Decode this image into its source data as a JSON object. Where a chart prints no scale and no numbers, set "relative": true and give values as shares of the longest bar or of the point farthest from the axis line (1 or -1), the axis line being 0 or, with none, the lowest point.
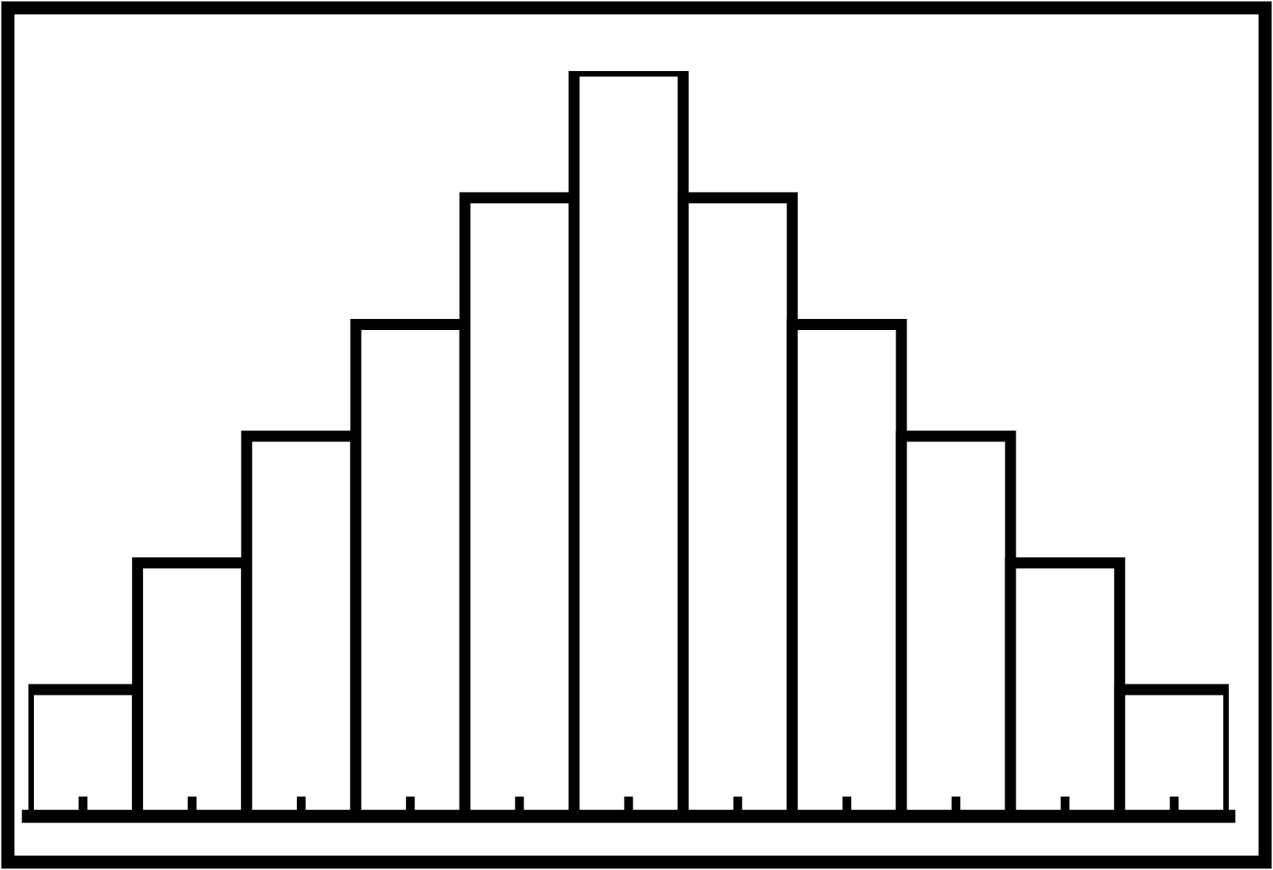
{
  "chart_data": {
    "type": "bar",
    "relative": true,
    "categories": [
      null,
      null,
      null,
      null,
      null,
      null,
      null,
      null,
      null,
      null,
      null
    ],
    "values": [
      0.17,
      0.34,
      0.51,
      0.66,
      0.83,
      1,
      0.83,
      0.66,
      0.51,
      0.34,
      0.17
    ],
    "color": "#ffffff",
    "grid": false,
    "legend": false
  }
}
